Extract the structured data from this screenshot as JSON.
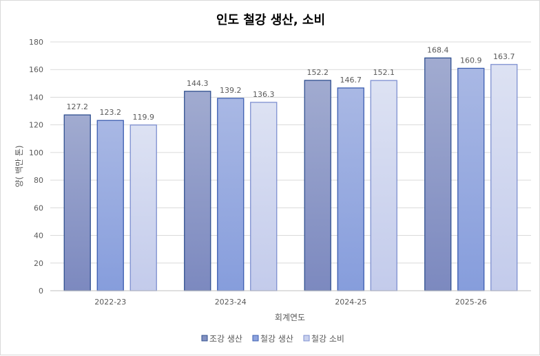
{
  "chart_data": {
    "type": "bar",
    "title": "인도 철강 생산, 소비",
    "xlabel": "회계연도",
    "ylabel": "양( 백만 톤)",
    "categories": [
      "2022-23",
      "2023-24",
      "2024-25",
      "2025-26"
    ],
    "series": [
      {
        "name": "조강 생산",
        "values": [
          127.2,
          144.3,
          152.2,
          168.4
        ],
        "color": "#8391c2"
      },
      {
        "name": "철강 생산",
        "values": [
          123.2,
          139.2,
          146.7,
          160.9
        ],
        "color": "#8ea3de"
      },
      {
        "name": "철강 소비",
        "values": [
          119.9,
          136.3,
          152.1,
          163.7
        ],
        "color": "#c9d1ee"
      }
    ],
    "ylim": [
      0,
      180
    ],
    "yticks": [
      0,
      20,
      40,
      60,
      80,
      100,
      120,
      140,
      160,
      180
    ],
    "grid": true,
    "legend_position": "bottom"
  }
}
